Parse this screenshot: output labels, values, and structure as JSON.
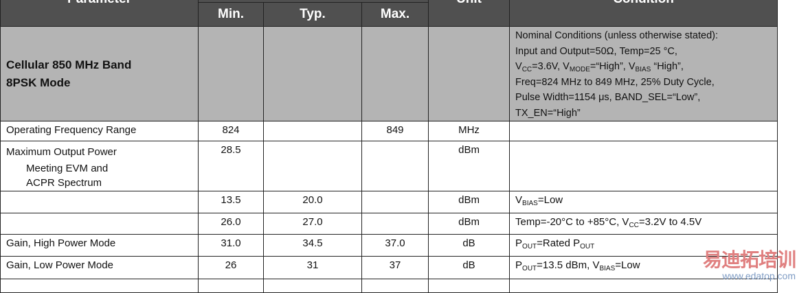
{
  "header": {
    "parameter": "Parameter",
    "min": "Min.",
    "typ": "Typ.",
    "max": "Max.",
    "unit": "Unit",
    "condition": "Condition"
  },
  "band": {
    "name_line1": "Cellular 850 MHz Band",
    "name_line2": "8PSK Mode",
    "cond": [
      "Nominal Conditions (unless otherwise stated):",
      "Input and Output=50Ω, Temp=25 °C,",
      "V",
      "CC",
      "=3.6V, V",
      "MODE",
      "=“High”, V",
      "BIAS",
      " “High”,",
      "Freq=824 MHz to 849 MHz, 25% Duty Cycle,",
      "Pulse Width=1154 μs, BAND_SEL=“Low”,",
      "TX_EN=“High”"
    ]
  },
  "rows": [
    {
      "param": "Operating Frequency Range",
      "min": "824",
      "typ": "",
      "max": "849",
      "unit": "MHz"
    },
    {
      "param": "Maximum Output Power",
      "param2": "Meeting EVM and",
      "param3": "ACPR Spectrum",
      "min": "28.5",
      "typ": "",
      "max": "",
      "unit": "dBm"
    },
    {
      "param": "",
      "min": "13.5",
      "typ": "20.0",
      "max": "",
      "unit": "dBm",
      "cond": [
        "V",
        "BIAS",
        "=Low"
      ]
    },
    {
      "param": "",
      "min": "26.0",
      "typ": "27.0",
      "max": "",
      "unit": "dBm",
      "cond": [
        "Temp=-20°C to +85°C, V",
        "CC",
        "=3.2V to 4.5V"
      ]
    },
    {
      "param": "Gain, High Power Mode",
      "min": "31.0",
      "typ": "34.5",
      "max": "37.0",
      "unit": "dB",
      "cond": [
        "P",
        "OUT",
        "=Rated P",
        "OUT"
      ]
    },
    {
      "param": "Gain, Low Power Mode",
      "min": "26",
      "typ": "31",
      "max": "37",
      "unit": "dB",
      "cond": [
        "P",
        "OUT",
        "=13.5 dBm, V",
        "BIAS",
        "=Low"
      ]
    }
  ],
  "watermark": {
    "line1": "易迪拓培训",
    "line2": "www.edatop.com"
  }
}
